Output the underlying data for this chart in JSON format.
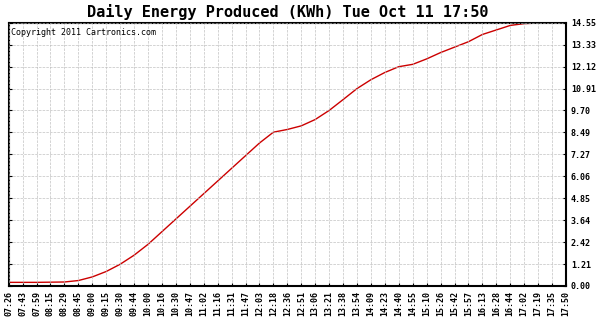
{
  "title": "Daily Energy Produced (KWh) Tue Oct 11 17:50",
  "copyright_text": "Copyright 2011 Cartronics.com",
  "line_color": "#cc0000",
  "background_color": "#ffffff",
  "plot_bg_color": "#ffffff",
  "grid_color": "#bbbbbb",
  "yticks": [
    0.0,
    1.21,
    2.42,
    3.64,
    4.85,
    6.06,
    7.27,
    8.49,
    9.7,
    10.91,
    12.12,
    13.33,
    14.55
  ],
  "ymax": 14.55,
  "ymin": 0.0,
  "xtick_labels": [
    "07:26",
    "07:43",
    "07:59",
    "08:15",
    "08:29",
    "08:45",
    "09:00",
    "09:15",
    "09:30",
    "09:44",
    "10:00",
    "10:16",
    "10:30",
    "10:47",
    "11:02",
    "11:16",
    "11:31",
    "11:47",
    "12:03",
    "12:18",
    "12:36",
    "12:51",
    "13:06",
    "13:21",
    "13:38",
    "13:54",
    "14:09",
    "14:23",
    "14:40",
    "14:55",
    "15:10",
    "15:26",
    "15:42",
    "15:57",
    "16:13",
    "16:28",
    "16:44",
    "17:02",
    "17:19",
    "17:35",
    "17:50"
  ],
  "curve_values": [
    0.2,
    0.2,
    0.2,
    0.21,
    0.22,
    0.3,
    0.5,
    0.8,
    1.2,
    1.7,
    2.3,
    3.0,
    3.7,
    4.4,
    5.1,
    5.8,
    6.5,
    7.2,
    7.9,
    8.5,
    8.65,
    8.85,
    9.2,
    9.7,
    10.3,
    10.91,
    11.4,
    11.8,
    12.12,
    12.25,
    12.55,
    12.9,
    13.2,
    13.5,
    13.9,
    14.15,
    14.4,
    14.5,
    14.53,
    14.54,
    14.55
  ],
  "title_fontsize": 11,
  "tick_fontsize": 6,
  "copyright_fontsize": 6
}
